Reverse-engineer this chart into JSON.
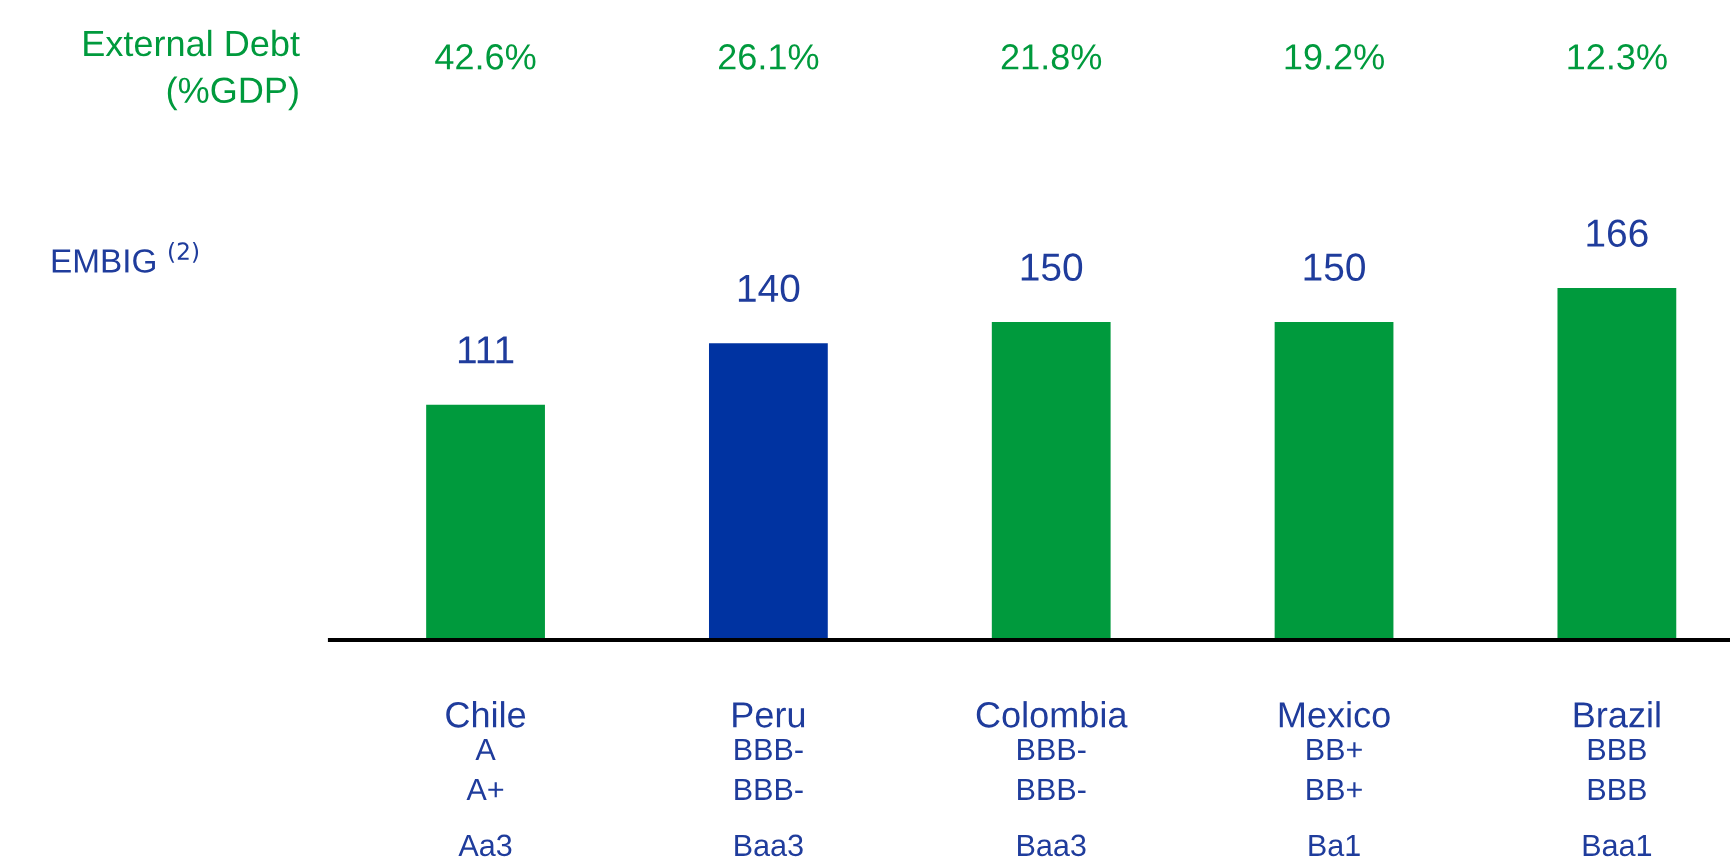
{
  "chart_data": {
    "type": "bar",
    "ylabel": "EMBIG $^{(2)}$",
    "categories": [
      "Chile",
      "Peru",
      "Colombia",
      "Mexico",
      "Brazil"
    ],
    "values": [
      111,
      140,
      150,
      150,
      166
    ],
    "colors": [
      "#009a3d",
      "#0033a1",
      "#009a3d",
      "#009a3d",
      "#009a3d"
    ],
    "data_labels": true,
    "relative": false,
    "grid": false,
    "legend": false,
    "annotations": [
      "External Debt\n(%GDP)",
      "42.6%",
      "26.1%",
      "21.8%",
      "19.2%",
      "12.3%",
      "A",
      "BBB-",
      "BBB-",
      "BB+",
      "BBB",
      "A+",
      "BBB-",
      "BBB-",
      "BB+",
      "BBB",
      "Aa3",
      "Baa3",
      "Baa3",
      "Ba1",
      "Baa1"
    ]
  }
}
